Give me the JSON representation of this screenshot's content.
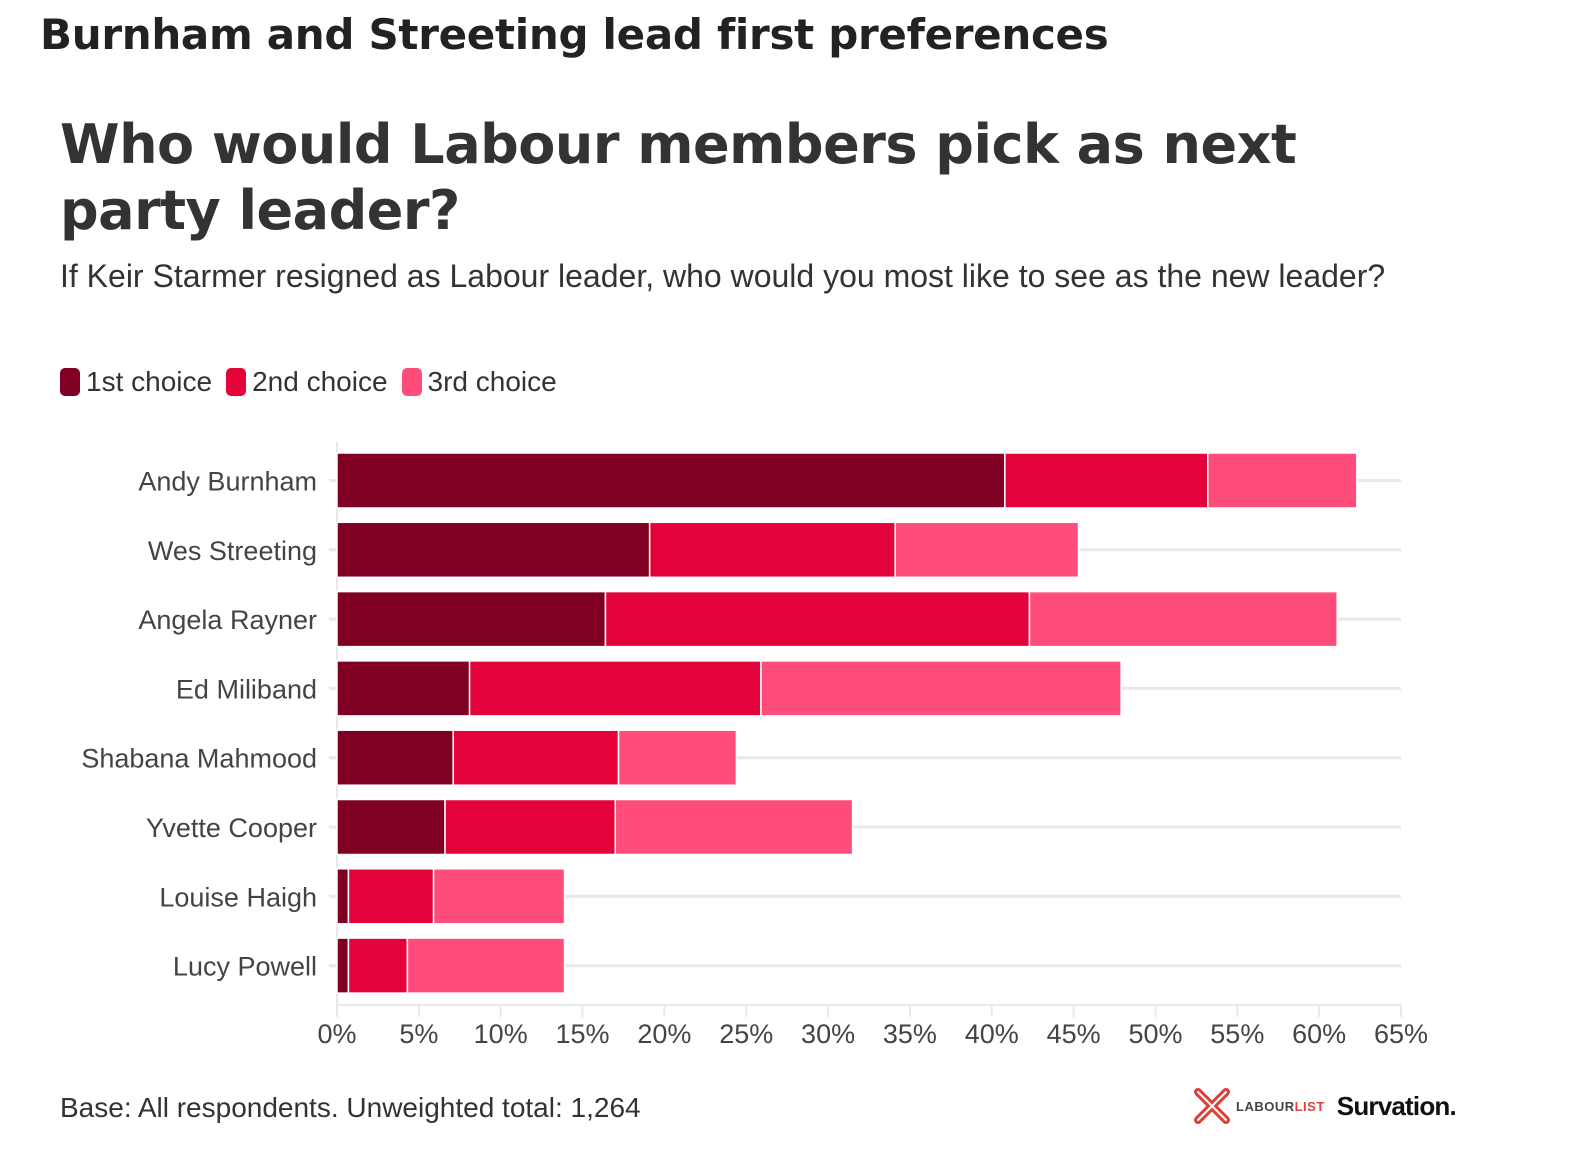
{
  "headline": "Burnham and Streeting lead first preferences",
  "title": "Who would Labour members pick as next party leader?",
  "subtitle": "If Keir Starmer resigned as Labour leader, who would you most like to see as the new leader?",
  "footer": "Base: All respondents. Unweighted total: 1,264",
  "logos": {
    "labourlist_part1": "LABOUR",
    "labourlist_part2": "LIST",
    "survation": "Survation."
  },
  "colors": {
    "first": "#7f0022",
    "second": "#e3023a",
    "third": "#ff4d7b",
    "grid": "#e9e9e9",
    "logo_red": "#e0403a"
  },
  "legend": [
    {
      "label": "1st choice",
      "color": "#7f0022"
    },
    {
      "label": "2nd choice",
      "color": "#e3023a"
    },
    {
      "label": "3rd choice",
      "color": "#ff4d7b"
    }
  ],
  "chart_data": {
    "type": "bar",
    "orientation": "horizontal",
    "stacked": true,
    "title": "Who would Labour members pick as next party leader?",
    "subtitle": "If Keir Starmer resigned as Labour leader, who would you most like to see as the new leader?",
    "categories": [
      "Andy Burnham",
      "Wes Streeting",
      "Angela Rayner",
      "Ed Miliband",
      "Shabana Mahmood",
      "Yvette Cooper",
      "Louise Haigh",
      "Lucy Powell"
    ],
    "series": [
      {
        "name": "1st choice",
        "color": "#7f0022",
        "values": [
          40.8,
          19.1,
          16.4,
          8.1,
          7.1,
          6.6,
          0.7,
          0.7
        ]
      },
      {
        "name": "2nd choice",
        "color": "#e3023a",
        "values": [
          12.4,
          15.0,
          25.9,
          17.8,
          10.1,
          10.4,
          5.2,
          3.6
        ]
      },
      {
        "name": "3rd choice",
        "color": "#ff4d7b",
        "values": [
          9.1,
          11.2,
          18.8,
          22.0,
          7.2,
          14.5,
          8.0,
          9.6
        ]
      }
    ],
    "xlabel": "",
    "ylabel": "",
    "xlim": [
      0,
      65
    ],
    "xticks": [
      0,
      5,
      10,
      15,
      20,
      25,
      30,
      35,
      40,
      45,
      50,
      55,
      60,
      65
    ],
    "xtick_labels": [
      "0%",
      "5%",
      "10%",
      "15%",
      "20%",
      "25%",
      "30%",
      "35%",
      "40%",
      "45%",
      "50%",
      "55%",
      "60%",
      "65%"
    ],
    "grid": true,
    "legend_position": "top-left"
  }
}
